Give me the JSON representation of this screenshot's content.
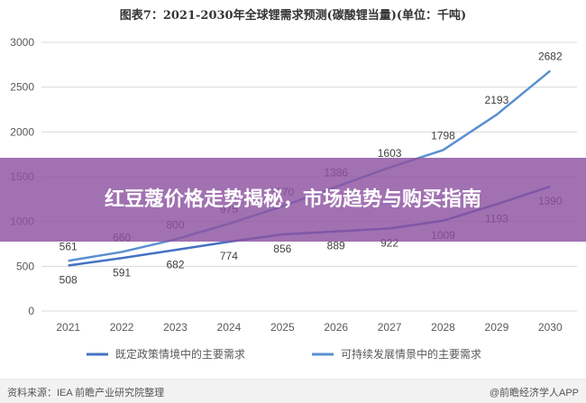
{
  "chart_data": {
    "type": "line",
    "title": "图表7：2021-2030年全球锂需求预测(碳酸锂当量)(单位：千吨)",
    "x": [
      "2021",
      "2022",
      "2023",
      "2024",
      "2025",
      "2026",
      "2027",
      "2028",
      "2029",
      "2030"
    ],
    "ylim": [
      0,
      3000
    ],
    "yticks": [
      0,
      500,
      1000,
      1500,
      2000,
      2500,
      3000
    ],
    "grid": true,
    "legend_position": "bottom",
    "series": [
      {
        "name": "既定政策情境中的主要需求",
        "color": "#4472c4",
        "values": [
          508,
          591,
          682,
          774,
          856,
          889,
          922,
          1009,
          1193,
          1390
        ]
      },
      {
        "name": "可持续发展情景中的主要需求",
        "color": "#5b8fd0",
        "values": [
          561,
          660,
          800,
          975,
          1170,
          1386,
          1603,
          1798,
          2193,
          2682
        ]
      }
    ]
  },
  "footer": {
    "source": "资料来源：IEA 前瞻产业研究院整理",
    "brand": "@前瞻经济学人APP"
  },
  "overlay": {
    "headline": "红豆蔻价格走势揭秘，市场趋势与购买指南"
  }
}
